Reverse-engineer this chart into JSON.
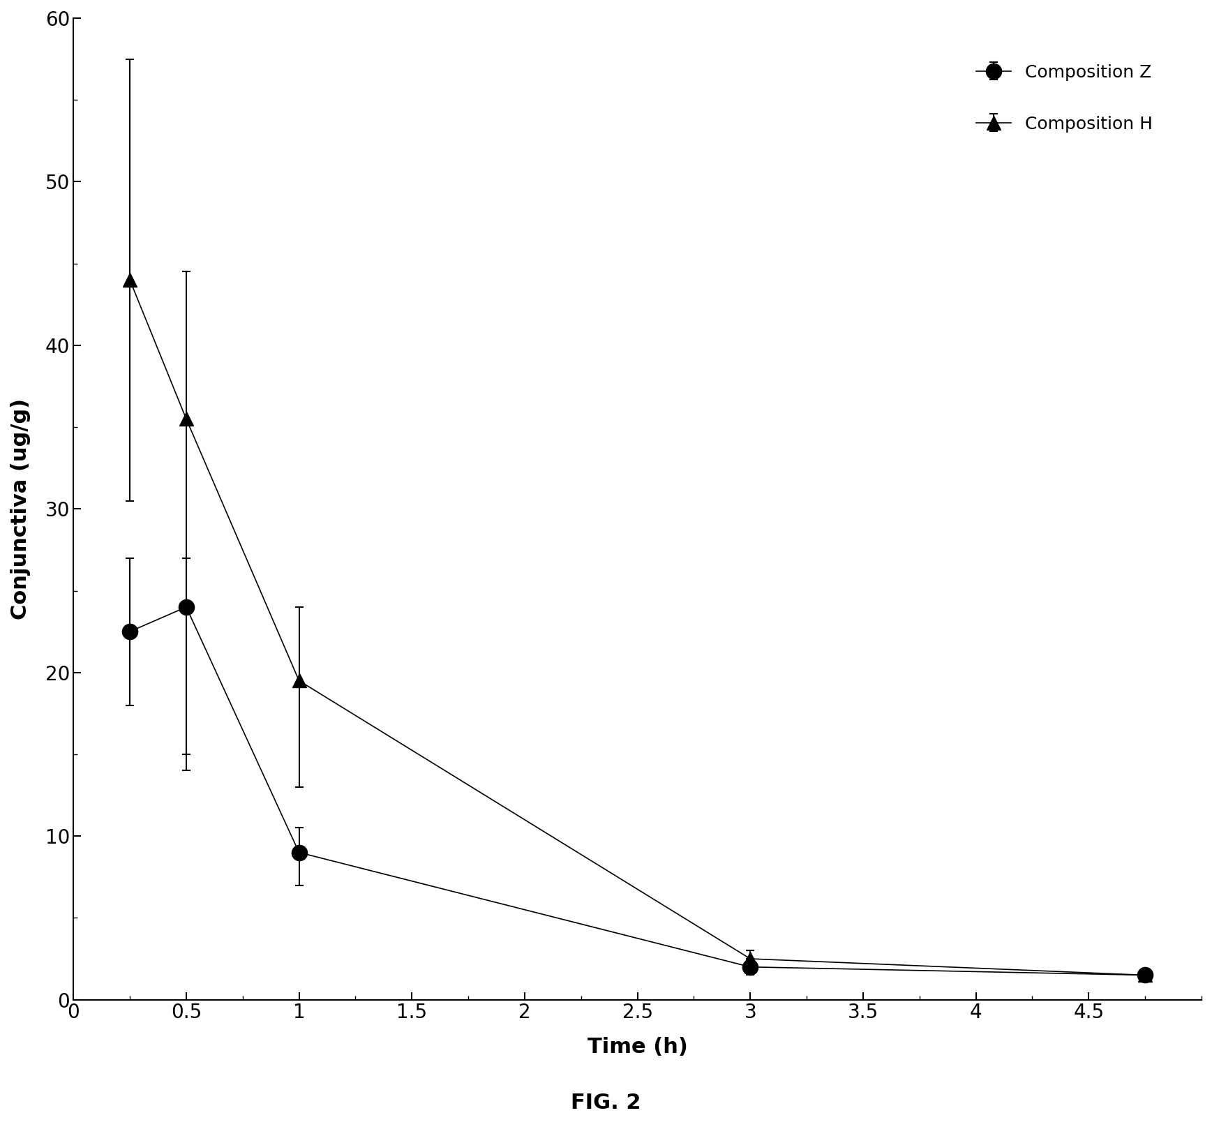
{
  "comp_z_x": [
    0.25,
    0.5,
    1.0,
    3.0,
    4.75
  ],
  "comp_z_y": [
    22.5,
    24.0,
    9.0,
    2.0,
    1.5
  ],
  "comp_z_yerr_upper": [
    4.5,
    3.0,
    1.5,
    0.5,
    0.3
  ],
  "comp_z_yerr_lower": [
    4.5,
    9.0,
    2.0,
    0.5,
    0.3
  ],
  "comp_h_x": [
    0.25,
    0.5,
    1.0,
    3.0,
    4.75
  ],
  "comp_h_y": [
    44.0,
    35.5,
    19.5,
    2.5,
    1.5
  ],
  "comp_h_yerr_upper": [
    13.5,
    9.0,
    4.5,
    0.5,
    0.3
  ],
  "comp_h_yerr_lower": [
    13.5,
    21.5,
    6.5,
    0.5,
    0.3
  ],
  "xlabel": "Time (h)",
  "ylabel": "Conjunctiva (ug/g)",
  "legend_z": "Composition Z",
  "legend_h": "Composition H",
  "caption": "FIG. 2",
  "xlim": [
    0.0,
    5.0
  ],
  "ylim": [
    0,
    60
  ],
  "xticks": [
    0,
    0.5,
    1.0,
    1.5,
    2.0,
    2.5,
    3.0,
    3.5,
    4.0,
    4.5
  ],
  "yticks": [
    0,
    10,
    20,
    30,
    40,
    50,
    60
  ],
  "color": "#000000",
  "background_color": "#ffffff",
  "marker_size_circle": 16,
  "marker_size_triangle": 14,
  "line_width": 1.2,
  "cap_size": 4,
  "label_fontsize": 22,
  "tick_fontsize": 20,
  "legend_fontsize": 18,
  "caption_fontsize": 22
}
